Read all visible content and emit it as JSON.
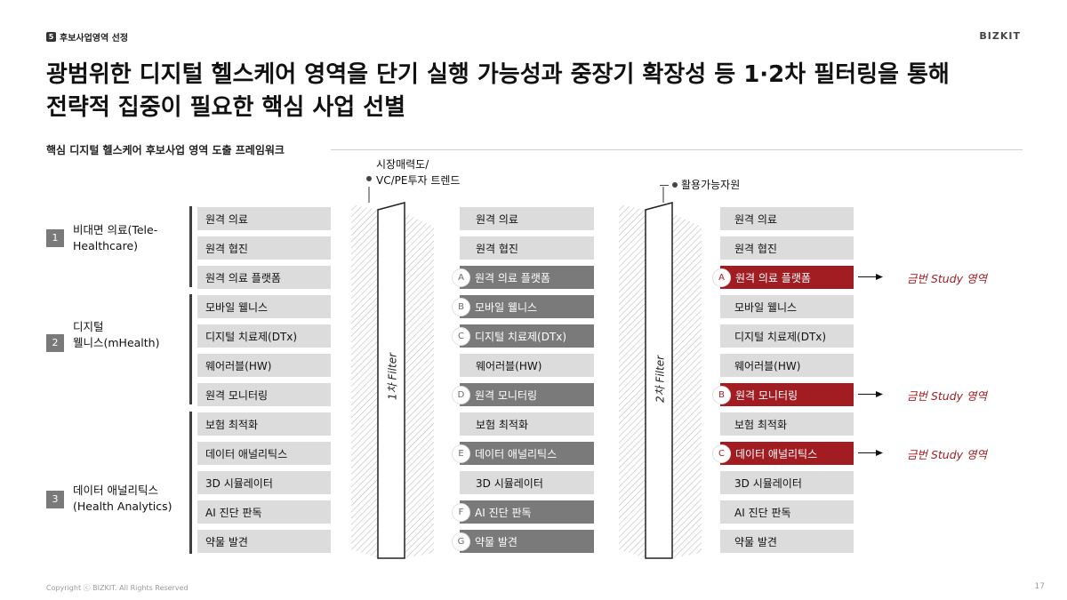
{
  "header": {
    "section_number": "5",
    "section_title": "후보사업영역 선정",
    "brand": "BIZKIT"
  },
  "title": {
    "line1": "광범위한 디지털 헬스케어 영역을 단기 실행 가능성과 중장기 확장성 등 1·2차 필터링을 통해",
    "line2": "전략적 집중이 필요한 핵심 사업 선별"
  },
  "framework_label": "핵심 디지털 헬스케어 후보사업 영역 도출 프레임워크",
  "categories": [
    {
      "number": "1",
      "label_line1": "비대면 의료(Tele-",
      "label_line2": "Healthcare)"
    },
    {
      "number": "2",
      "label_line1": "디지털",
      "label_line2": "웰니스(mHealth)"
    },
    {
      "number": "3",
      "label_line1": "데이터 애널리틱스",
      "label_line2": "(Health Analytics)"
    }
  ],
  "column1": [
    "원격 의료",
    "원격 협진",
    "원격 의료 플랫폼",
    "모바일 웰니스",
    "디지털 치료제(DTx)",
    "웨어러블(HW)",
    "원격 모니터링",
    "보험 최적화",
    "데이터 애널리틱스",
    "3D 시뮬레이터",
    "AI 진단 판독",
    "약물 발견"
  ],
  "column2": [
    {
      "label": "원격 의료",
      "marker": ""
    },
    {
      "label": "원격 협진",
      "marker": ""
    },
    {
      "label": "원격 의료 플랫폼",
      "marker": "A"
    },
    {
      "label": "모바일 웰니스",
      "marker": "B"
    },
    {
      "label": "디지털 치료제(DTx)",
      "marker": "C"
    },
    {
      "label": "웨어러블(HW)",
      "marker": ""
    },
    {
      "label": "원격 모니터링",
      "marker": "D"
    },
    {
      "label": "보험 최적화",
      "marker": ""
    },
    {
      "label": "데이터 애널리틱스",
      "marker": "E"
    },
    {
      "label": "3D 시뮬레이터",
      "marker": ""
    },
    {
      "label": "AI 진단 판독",
      "marker": "F"
    },
    {
      "label": "약물 발견",
      "marker": "G"
    }
  ],
  "column3": [
    {
      "label": "원격 의료",
      "marker": ""
    },
    {
      "label": "원격 협진",
      "marker": ""
    },
    {
      "label": "원격 의료 플랫폼",
      "marker": "A"
    },
    {
      "label": "모바일 웰니스",
      "marker": ""
    },
    {
      "label": "디지털 치료제(DTx)",
      "marker": ""
    },
    {
      "label": "웨어러블(HW)",
      "marker": ""
    },
    {
      "label": "원격 모니터링",
      "marker": "B"
    },
    {
      "label": "보험 최적화",
      "marker": ""
    },
    {
      "label": "데이터 애널리틱스",
      "marker": "C"
    },
    {
      "label": "3D 시뮬레이터",
      "marker": ""
    },
    {
      "label": "AI 진단 판독",
      "marker": ""
    },
    {
      "label": "약물 발견",
      "marker": ""
    }
  ],
  "filter1": {
    "label": "1차 Filter",
    "note_line1": "시장매력도/",
    "note_line2": "VC/PE투자 트렌드"
  },
  "filter2": {
    "label": "2차 Filter",
    "note_line1": "활용가능자원"
  },
  "study_label": "금번 Study 영역",
  "footer": {
    "copyright": "Copyright ⓒ BIZKIT. All Rights Reserved",
    "page": "17"
  },
  "colors": {
    "accent_red": "#a11d22",
    "dark_gray": "#7a7a7a",
    "light_gray": "#dcdcdc"
  }
}
